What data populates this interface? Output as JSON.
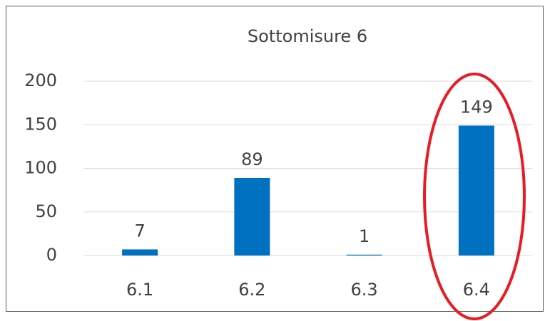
{
  "chart_data": {
    "type": "bar",
    "title": "Sottomisure 6",
    "categories": [
      "6.1",
      "6.2",
      "6.3",
      "6.4"
    ],
    "values": [
      7,
      89,
      1,
      149
    ],
    "color": "#0070c0",
    "ylim": [
      0,
      200
    ],
    "yticks": [
      0,
      50,
      100,
      150,
      200
    ],
    "grid": true,
    "data_labels": true
  }
}
